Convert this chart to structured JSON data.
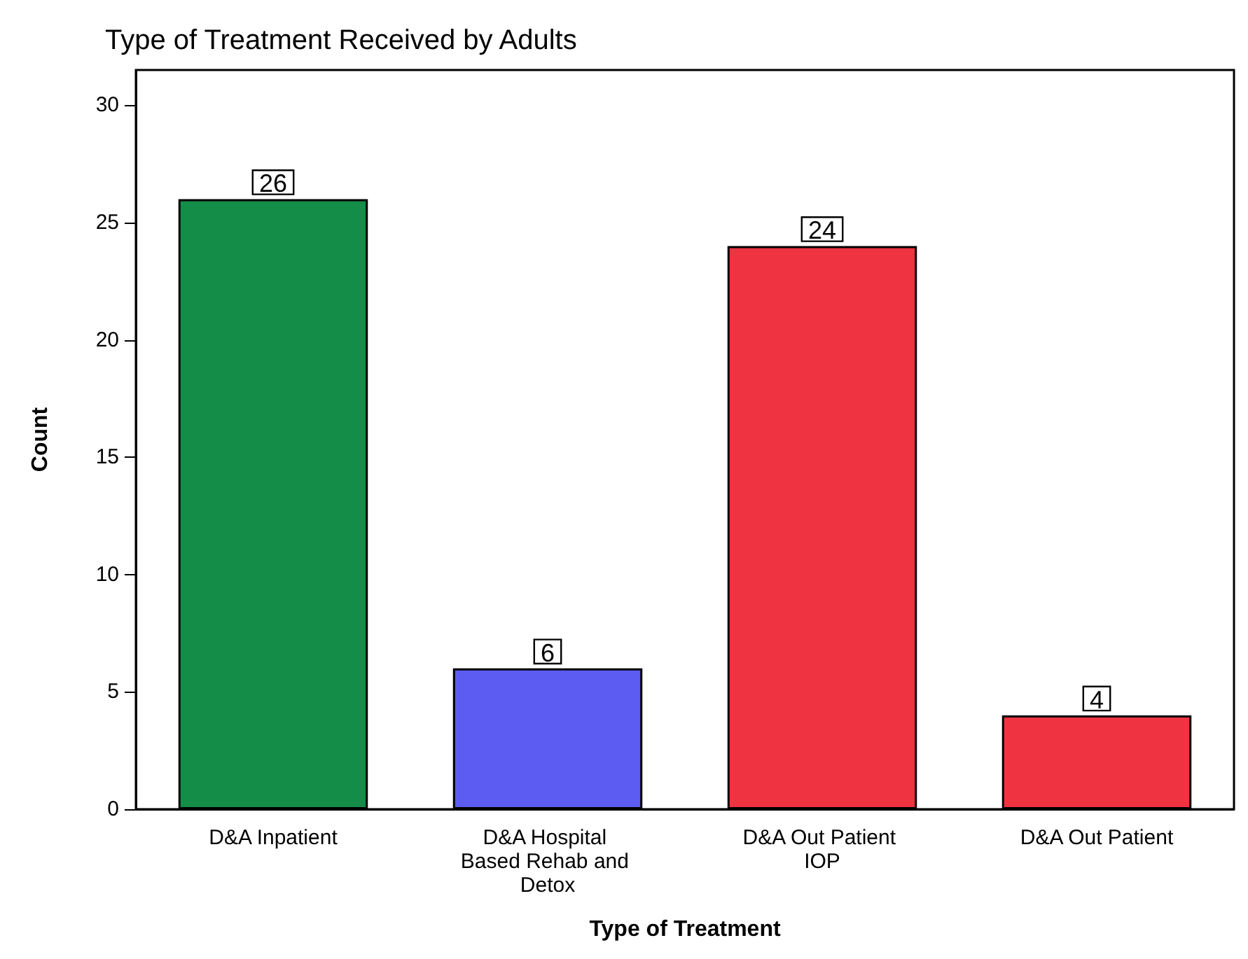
{
  "chart_data": {
    "type": "bar",
    "title": "Type of Treatment Received by Adults",
    "xlabel": "Type of Treatment",
    "ylabel": "Count",
    "categories": [
      "D&A Inpatient",
      "D&A Hospital Based Rehab and Detox",
      "D&A Out Patient IOP",
      "D&A Out Patient"
    ],
    "values": [
      26,
      6,
      24,
      4
    ],
    "colors": [
      "#138d47",
      "#5c5cf2",
      "#ef3340",
      "#ef3340"
    ],
    "ylim": [
      0,
      31.5
    ],
    "yticks": [
      0,
      5,
      10,
      15,
      20,
      25,
      30
    ],
    "data_labels": true,
    "grid": false
  }
}
